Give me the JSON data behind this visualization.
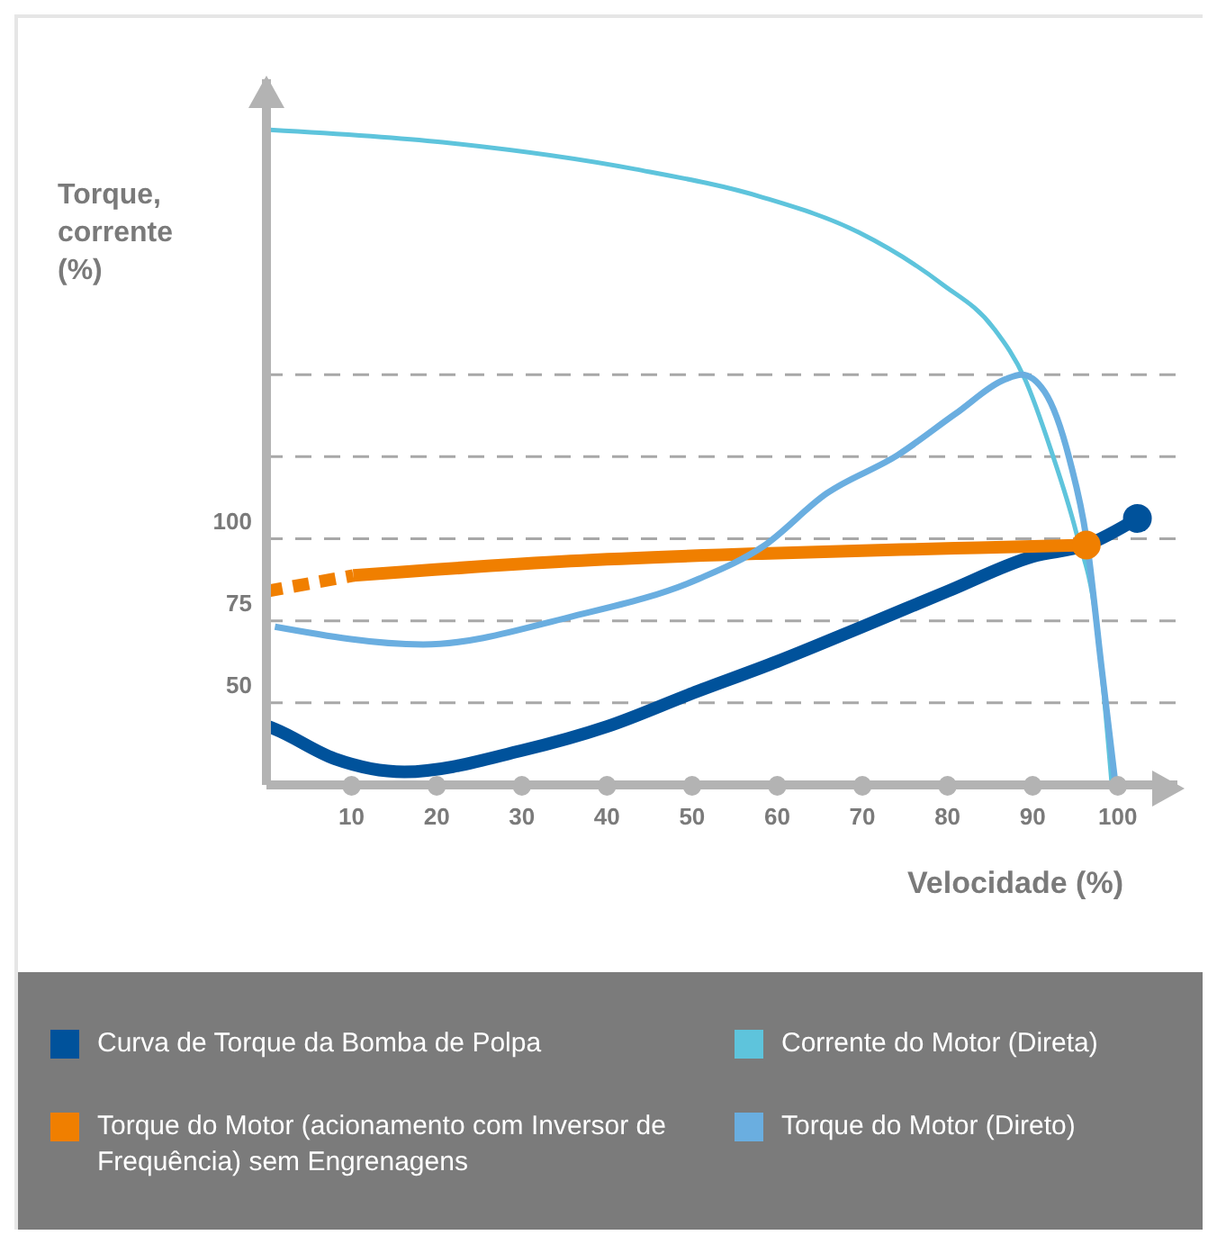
{
  "chart_data": {
    "type": "line",
    "xlabel": "Velocidade (%)",
    "ylabel": "Torque,\ncorrente\n(%)",
    "xlim": [
      0,
      107
    ],
    "xticks": [
      10,
      20,
      30,
      40,
      50,
      60,
      70,
      80,
      90,
      100
    ],
    "ylim": [
      25,
      240
    ],
    "yticks": [
      50,
      75,
      100,
      {
        "value": 125,
        "label": null
      },
      {
        "value": 150,
        "label": null
      }
    ],
    "grid": "y",
    "legend": "bottom",
    "marker": "none",
    "series": [
      {
        "name": "Curva de Torque da Bomba de Polpa",
        "color": "#00529b",
        "x": [
          0,
          1,
          8,
          16.2,
          30,
          40,
          50,
          60,
          70,
          80,
          90,
          96.3,
          102.3
        ],
        "values": [
          43,
          42,
          33,
          29,
          35.5,
          42.8,
          52.9,
          62.6,
          73.2,
          84,
          94.6,
          98.1,
          106.2
        ]
      },
      {
        "name": "Torque do Motor (acionamento com Inversor de Frequência) sem Engrenagens",
        "color": "#f07f00",
        "x": [
          10.2,
          35.7,
          58.2,
          80.9,
          96.3
        ],
        "values": [
          88.8,
          93.2,
          95.5,
          97.1,
          98.1
        ]
      },
      {
        "name": "Corrente do Motor (Direta)",
        "color": "#5ec4dc",
        "x": [
          0.4,
          20.7,
          43.3,
          58.3,
          69.6,
          79.3,
          85.4,
          89.1,
          92.1,
          95.1,
          97.4,
          99.3
        ],
        "values": [
          224.6,
          220.8,
          212.6,
          204,
          193.3,
          177.7,
          164.2,
          148.6,
          127.4,
          102.1,
          76.2,
          25
        ]
      },
      {
        "name": "Torque do Motor (Direto)",
        "color": "#6aaee0",
        "x": [
          1,
          18.4,
          35.7,
          50.8,
          58.3,
          65.8,
          74.1,
          80.9,
          86.8,
          88.7,
          91.4,
          94.4,
          96.3,
          98.1,
          99.7
        ],
        "values": [
          73.2,
          67.8,
          76.2,
          87.8,
          97.6,
          113.8,
          125.4,
          138,
          148.6,
          150,
          144.8,
          123.5,
          100.3,
          60.6,
          25.7
        ]
      },
      {
        "color": "#f07f00",
        "line_style": "dashed",
        "x": [
          0,
          10.2
        ],
        "values": [
          84,
          88.8
        ]
      },
      {
        "type": "scatter",
        "color": "#f07f00",
        "marker": "circle",
        "x": [
          96.3
        ],
        "values": [
          98.1
        ]
      },
      {
        "type": "scatter",
        "color": "#00529b",
        "marker": "circle",
        "x": [
          102.3
        ],
        "values": [
          106.2
        ]
      }
    ]
  }
}
